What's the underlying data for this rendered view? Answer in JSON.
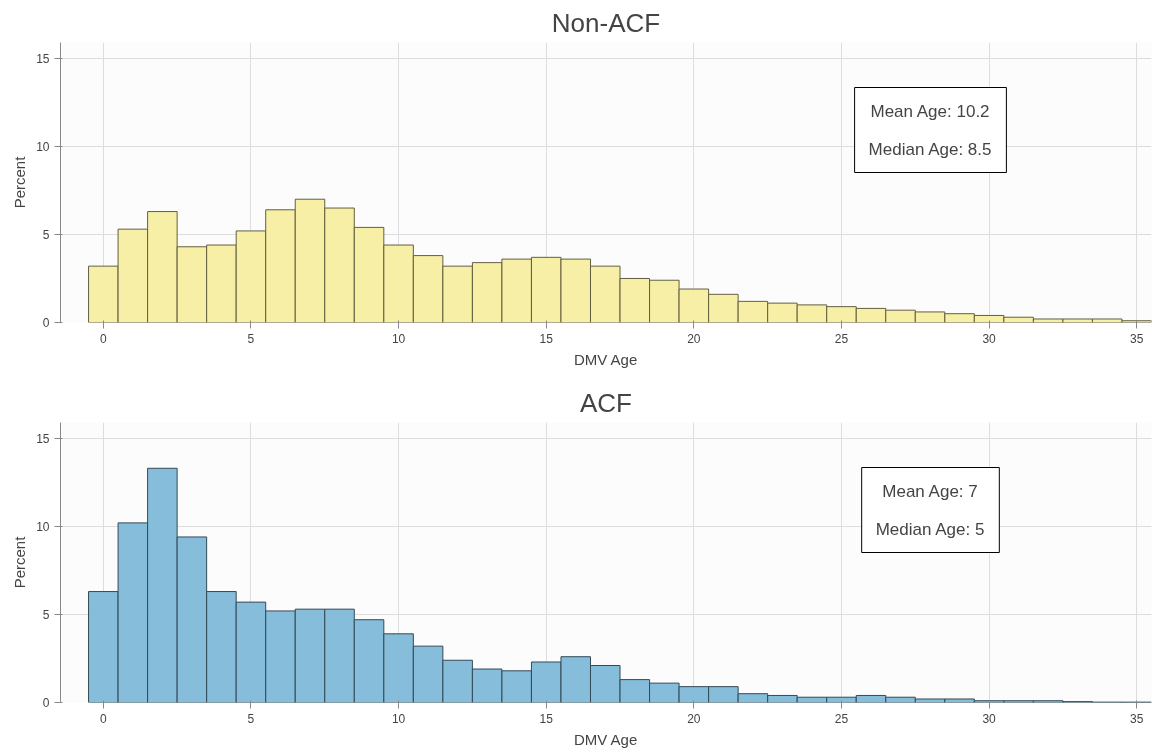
{
  "chart_data": [
    {
      "type": "histogram",
      "title": "Non-ACF",
      "xlabel": "DMV Age",
      "ylabel": "Percent",
      "color": "#f5eea0",
      "bins": [
        -0.5,
        0.5,
        1.5,
        2.5,
        3.5,
        4.5,
        5.5,
        6.5,
        7.5,
        8.5,
        9.5,
        10.5,
        11.5,
        12.5,
        13.5,
        14.5,
        15.5,
        16.5,
        17.5,
        18.5,
        19.5,
        20.5,
        21.5,
        22.5,
        23.5,
        24.5,
        25.5,
        26.5,
        27.5,
        28.5,
        29.5,
        30.5,
        31.5,
        32.5,
        33.5,
        34.5,
        35.5
      ],
      "values": [
        3.2,
        5.3,
        6.3,
        4.3,
        4.4,
        5.2,
        6.4,
        7.0,
        6.5,
        5.4,
        4.4,
        3.8,
        3.2,
        3.4,
        3.6,
        3.7,
        3.6,
        3.2,
        2.5,
        2.4,
        1.9,
        1.6,
        1.2,
        1.1,
        1.0,
        0.9,
        0.8,
        0.7,
        0.6,
        0.5,
        0.4,
        0.3,
        0.2,
        0.2,
        0.2,
        0.1
      ],
      "xlim": [
        -1.45,
        35.5
      ],
      "ylim": [
        0,
        15.9
      ],
      "xticks": [
        0,
        5,
        10,
        15,
        20,
        25,
        30,
        35
      ],
      "yticks": [
        0,
        5,
        10,
        15
      ],
      "grid": true,
      "annotations": [
        "Mean Age: 10.2",
        "Median Age: 8.5"
      ]
    },
    {
      "type": "histogram",
      "title": "ACF",
      "xlabel": "DMV Age",
      "ylabel": "Percent",
      "color": "#80b9d8",
      "bins": [
        -0.5,
        0.5,
        1.5,
        2.5,
        3.5,
        4.5,
        5.5,
        6.5,
        7.5,
        8.5,
        9.5,
        10.5,
        11.5,
        12.5,
        13.5,
        14.5,
        15.5,
        16.5,
        17.5,
        18.5,
        19.5,
        20.5,
        21.5,
        22.5,
        23.5,
        24.5,
        25.5,
        26.5,
        27.5,
        28.5,
        29.5,
        30.5,
        31.5,
        32.5,
        33.5,
        34.5,
        35.5
      ],
      "values": [
        6.3,
        10.2,
        13.3,
        9.4,
        6.3,
        5.7,
        5.2,
        5.3,
        5.3,
        4.7,
        3.9,
        3.2,
        2.4,
        1.9,
        1.8,
        2.3,
        2.6,
        2.1,
        1.3,
        1.1,
        0.9,
        0.9,
        0.5,
        0.4,
        0.3,
        0.3,
        0.4,
        0.3,
        0.2,
        0.2,
        0.1,
        0.1,
        0.1,
        0.05,
        0.02,
        0.02
      ],
      "xlim": [
        -1.45,
        35.5
      ],
      "ylim": [
        0,
        15.9
      ],
      "xticks": [
        0,
        5,
        10,
        15,
        20,
        25,
        30,
        35
      ],
      "yticks": [
        0,
        5,
        10,
        15
      ],
      "grid": true,
      "annotations": [
        "Mean Age: 7",
        "Median Age: 5"
      ]
    }
  ]
}
